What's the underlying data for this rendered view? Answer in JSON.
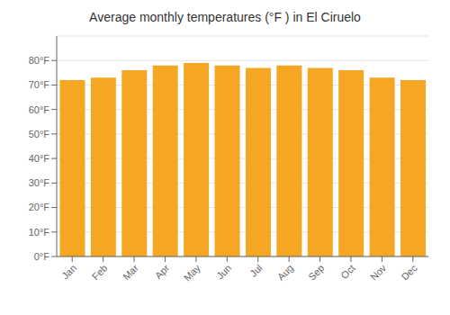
{
  "chart_data": {
    "type": "bar",
    "title": "Average monthly temperatures (°F ) in El Ciruelo",
    "categories": [
      "Jan",
      "Feb",
      "Mar",
      "Apr",
      "May",
      "Jun",
      "Jul",
      "Aug",
      "Sep",
      "Oct",
      "Nov",
      "Dec"
    ],
    "values": [
      72,
      73,
      76,
      78,
      79,
      78,
      77,
      78,
      77,
      76,
      73,
      72
    ],
    "color": "#F5A623",
    "ylim": [
      0,
      90
    ],
    "yticks": [
      {
        "value": 0,
        "label": "0°F"
      },
      {
        "value": 10,
        "label": "10°F"
      },
      {
        "value": 20,
        "label": "20°F"
      },
      {
        "value": 30,
        "label": "30°F"
      },
      {
        "value": 40,
        "label": "40°F"
      },
      {
        "value": 50,
        "label": "50°F"
      },
      {
        "value": 60,
        "label": "60°F"
      },
      {
        "value": 70,
        "label": "70°F"
      },
      {
        "value": 80,
        "label": "80°F"
      }
    ],
    "grid": true
  }
}
